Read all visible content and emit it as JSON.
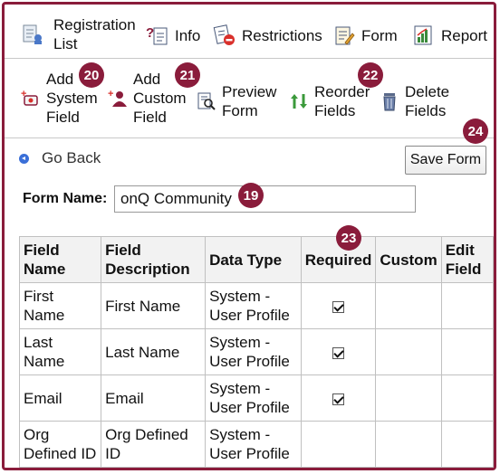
{
  "top_nav": {
    "registration_list_line1": "Registration",
    "registration_list_line2": "List",
    "info": "Info",
    "restrictions": "Restrictions",
    "form": "Form",
    "report": "Report"
  },
  "actions": {
    "add_system_l1": "Add",
    "add_system_l2": "System",
    "add_system_l3": "Field",
    "add_custom_l1": "Add",
    "add_custom_l2": "Custom",
    "add_custom_l3": "Field",
    "preview_l1": "Preview",
    "preview_l2": "Form",
    "reorder_l1": "Reorder",
    "reorder_l2": "Fields",
    "delete_l1": "Delete",
    "delete_l2": "Fields"
  },
  "badges": {
    "b19": "19",
    "b20": "20",
    "b21": "21",
    "b22": "22",
    "b23": "23",
    "b24": "24"
  },
  "go_back": "Go Back",
  "save_form": "Save Form",
  "form_name": {
    "label": "Form Name:",
    "value": "onQ Community"
  },
  "table": {
    "headers": {
      "field_name_l1": "Field",
      "field_name_l2": "Name",
      "field_desc_l1": "Field",
      "field_desc_l2": "Description",
      "data_type": "Data Type",
      "required": "Required",
      "custom": "Custom",
      "edit_l1": "Edit",
      "edit_l2": "Field"
    },
    "rows": [
      {
        "name_l1": "First Name",
        "name_l2": "",
        "desc_l1": "First Name",
        "desc_l2": "",
        "type_l1": "System -",
        "type_l2": "User Profile",
        "required": true
      },
      {
        "name_l1": "Last Name",
        "name_l2": "",
        "desc_l1": "Last Name",
        "desc_l2": "",
        "type_l1": "System -",
        "type_l2": "User Profile",
        "required": true
      },
      {
        "name_l1": "Email",
        "name_l2": "",
        "desc_l1": "Email",
        "desc_l2": "",
        "type_l1": "System -",
        "type_l2": "User Profile",
        "required": true
      },
      {
        "name_l1": "Org",
        "name_l2": "Defined ID",
        "desc_l1": "Org Defined",
        "desc_l2": "ID",
        "type_l1": "System -",
        "type_l2": "User Profile",
        "required": false
      }
    ]
  },
  "colors": {
    "accent": "#8a1c3b",
    "header_bg": "#f2f2f2",
    "link_blue": "#3a6fd8"
  }
}
